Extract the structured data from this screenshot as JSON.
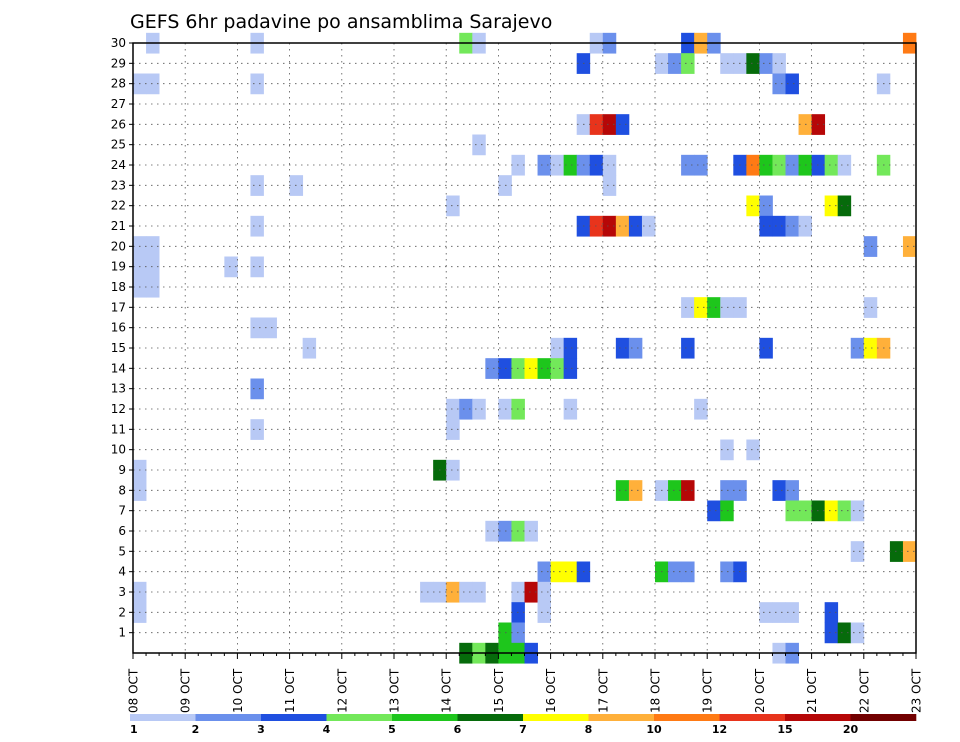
{
  "chart_data": {
    "type": "heatmap",
    "title": "GEFS 6hr padavine po ansamblima Sarajevo",
    "x_tick_labels": [
      "08 OCT",
      "09 OCT",
      "10 OCT",
      "11 OCT",
      "12 OCT",
      "13 OCT",
      "14 OCT",
      "15 OCT",
      "16 OCT",
      "17 OCT",
      "18 OCT",
      "19 OCT",
      "20 OCT",
      "21 OCT",
      "22 OCT",
      "23 OCT"
    ],
    "x_range_days": [
      0,
      15
    ],
    "time_step_hours": 6,
    "y_tick_labels": [
      "1",
      "2",
      "3",
      "4",
      "5",
      "6",
      "7",
      "8",
      "9",
      "10",
      "11",
      "12",
      "13",
      "14",
      "15",
      "16",
      "17",
      "18",
      "19",
      "20",
      "21",
      "22",
      "23",
      "24",
      "25",
      "26",
      "27",
      "28",
      "29",
      "30"
    ],
    "y_range": [
      0,
      30
    ],
    "grid": true,
    "legend_placement": "bottom",
    "legend": {
      "labels": [
        "1",
        "2",
        "3",
        "4",
        "5",
        "6",
        "7",
        "8",
        "10",
        "12",
        "15",
        "20"
      ],
      "colors": [
        "#b8c9f5",
        "#6b90ec",
        "#1f4fe0",
        "#73e85a",
        "#1ec61c",
        "#066b0b",
        "#ffff00",
        "#ffb03a",
        "#ff7a14",
        "#e8341c",
        "#b60707",
        "#720000"
      ]
    },
    "cells": [
      [
        0.25,
        30,
        1
      ],
      [
        2.25,
        30,
        1
      ],
      [
        6.25,
        30,
        4
      ],
      [
        6.5,
        30,
        1
      ],
      [
        8.75,
        30,
        1
      ],
      [
        9,
        30,
        2
      ],
      [
        10.5,
        30,
        3
      ],
      [
        10.75,
        30,
        8
      ],
      [
        11,
        30,
        2
      ],
      [
        14.75,
        30,
        10
      ],
      [
        8.5,
        29,
        3
      ],
      [
        10,
        29,
        1
      ],
      [
        10.25,
        29,
        2
      ],
      [
        10.5,
        29,
        4
      ],
      [
        11.25,
        29,
        1
      ],
      [
        11.5,
        29,
        1
      ],
      [
        11.75,
        29,
        6
      ],
      [
        12,
        29,
        2
      ],
      [
        12.25,
        29,
        1
      ],
      [
        0,
        28,
        1
      ],
      [
        0.25,
        28,
        1
      ],
      [
        2.25,
        28,
        1
      ],
      [
        12.25,
        28,
        2
      ],
      [
        12.5,
        28,
        3
      ],
      [
        14.25,
        28,
        1
      ],
      [
        8.5,
        26,
        1
      ],
      [
        8.75,
        26,
        12
      ],
      [
        9,
        26,
        15
      ],
      [
        9.25,
        26,
        3
      ],
      [
        12.75,
        26,
        9
      ],
      [
        13,
        26,
        15
      ],
      [
        6.5,
        25,
        1
      ],
      [
        7.25,
        24,
        1
      ],
      [
        7.75,
        24,
        2
      ],
      [
        8,
        24,
        1
      ],
      [
        8.25,
        24,
        5
      ],
      [
        8.5,
        24,
        2
      ],
      [
        8.75,
        24,
        3
      ],
      [
        9,
        24,
        1
      ],
      [
        10.5,
        24,
        2
      ],
      [
        10.75,
        24,
        2
      ],
      [
        11.5,
        24,
        3
      ],
      [
        11.75,
        24,
        11
      ],
      [
        12,
        24,
        5
      ],
      [
        12.25,
        24,
        4
      ],
      [
        12.5,
        24,
        2
      ],
      [
        12.75,
        24,
        5
      ],
      [
        13,
        24,
        3
      ],
      [
        13.25,
        24,
        4
      ],
      [
        13.5,
        24,
        1
      ],
      [
        14.25,
        24,
        4
      ],
      [
        2.25,
        23,
        1
      ],
      [
        3,
        23,
        1
      ],
      [
        7,
        23,
        1
      ],
      [
        9,
        23,
        1
      ],
      [
        6,
        22,
        1
      ],
      [
        11.75,
        22,
        7
      ],
      [
        12,
        22,
        2
      ],
      [
        13.25,
        22,
        7
      ],
      [
        13.5,
        22,
        6
      ],
      [
        2.25,
        21,
        1
      ],
      [
        8.5,
        21,
        3
      ],
      [
        8.75,
        21,
        12
      ],
      [
        9,
        21,
        15
      ],
      [
        9.25,
        21,
        9
      ],
      [
        9.5,
        21,
        3
      ],
      [
        9.75,
        21,
        1
      ],
      [
        12,
        21,
        3
      ],
      [
        12.25,
        21,
        3
      ],
      [
        12.5,
        21,
        2
      ],
      [
        12.75,
        21,
        1
      ],
      [
        0,
        20,
        1
      ],
      [
        0.25,
        20,
        1
      ],
      [
        14,
        20,
        2
      ],
      [
        14.75,
        20,
        9
      ],
      [
        0,
        19,
        1
      ],
      [
        0.25,
        19,
        1
      ],
      [
        1.75,
        19,
        1
      ],
      [
        2.25,
        19,
        1
      ],
      [
        0,
        18,
        1
      ],
      [
        0.25,
        18,
        1
      ],
      [
        14,
        17,
        1
      ],
      [
        10.5,
        17,
        1
      ],
      [
        10.75,
        17,
        7
      ],
      [
        11,
        17,
        5
      ],
      [
        11.25,
        17,
        1
      ],
      [
        11.5,
        17,
        1
      ],
      [
        2.25,
        16,
        1
      ],
      [
        2.5,
        16,
        1
      ],
      [
        3.25,
        15,
        1
      ],
      [
        8,
        15,
        1
      ],
      [
        8.25,
        15,
        3
      ],
      [
        9.25,
        15,
        3
      ],
      [
        9.5,
        15,
        2
      ],
      [
        10.5,
        15,
        3
      ],
      [
        12,
        15,
        3
      ],
      [
        13.75,
        15,
        2
      ],
      [
        14,
        15,
        7
      ],
      [
        14.25,
        15,
        8
      ],
      [
        6.75,
        14,
        2
      ],
      [
        7,
        14,
        3
      ],
      [
        7.25,
        14,
        4
      ],
      [
        7.5,
        14,
        7
      ],
      [
        7.75,
        14,
        5
      ],
      [
        8,
        14,
        4
      ],
      [
        8.25,
        14,
        3
      ],
      [
        2.25,
        13,
        2
      ],
      [
        6,
        12,
        1
      ],
      [
        6.25,
        12,
        2
      ],
      [
        6.5,
        12,
        1
      ],
      [
        7,
        12,
        1
      ],
      [
        7.25,
        12,
        4
      ],
      [
        8.25,
        12,
        1
      ],
      [
        10.75,
        12,
        1
      ],
      [
        2.25,
        11,
        1
      ],
      [
        6,
        11,
        1
      ],
      [
        11.25,
        10,
        1
      ],
      [
        11.75,
        10,
        1
      ],
      [
        0,
        9,
        1
      ],
      [
        5.75,
        9,
        6
      ],
      [
        6,
        9,
        1
      ],
      [
        0,
        8,
        1
      ],
      [
        9.25,
        8,
        5
      ],
      [
        9.5,
        8,
        8
      ],
      [
        10,
        8,
        1
      ],
      [
        10.25,
        8,
        5
      ],
      [
        10.5,
        8,
        15
      ],
      [
        11.25,
        8,
        2
      ],
      [
        11.5,
        8,
        2
      ],
      [
        12.25,
        8,
        3
      ],
      [
        12.5,
        8,
        2
      ],
      [
        11,
        7,
        3
      ],
      [
        11.25,
        7,
        5
      ],
      [
        12.5,
        7,
        4
      ],
      [
        12.75,
        7,
        4
      ],
      [
        13,
        7,
        6
      ],
      [
        13.25,
        7,
        7
      ],
      [
        13.5,
        7,
        4
      ],
      [
        13.75,
        7,
        1
      ],
      [
        6.75,
        6,
        1
      ],
      [
        7,
        6,
        2
      ],
      [
        7.25,
        6,
        4
      ],
      [
        7.5,
        6,
        1
      ],
      [
        13.75,
        5,
        1
      ],
      [
        14.5,
        5,
        6
      ],
      [
        14.75,
        5,
        9
      ],
      [
        7.75,
        4,
        2
      ],
      [
        8,
        4,
        7
      ],
      [
        8.25,
        4,
        7
      ],
      [
        8.5,
        4,
        3
      ],
      [
        10,
        4,
        5
      ],
      [
        10.25,
        4,
        2
      ],
      [
        10.5,
        4,
        2
      ],
      [
        11.25,
        4,
        2
      ],
      [
        11.5,
        4,
        3
      ],
      [
        0,
        3,
        1
      ],
      [
        5.5,
        3,
        1
      ],
      [
        5.75,
        3,
        1
      ],
      [
        6,
        3,
        9
      ],
      [
        6.25,
        3,
        1
      ],
      [
        6.5,
        3,
        1
      ],
      [
        7.25,
        3,
        1
      ],
      [
        7.5,
        3,
        15
      ],
      [
        7.75,
        3,
        1
      ],
      [
        0,
        2,
        1
      ],
      [
        7.25,
        2,
        3
      ],
      [
        7.75,
        2,
        1
      ],
      [
        12,
        2,
        1
      ],
      [
        12.25,
        2,
        1
      ],
      [
        12.5,
        2,
        1
      ],
      [
        13.25,
        2,
        3
      ],
      [
        7,
        1,
        5
      ],
      [
        7.25,
        1,
        2
      ],
      [
        13.25,
        1,
        3
      ],
      [
        13.5,
        1,
        6
      ],
      [
        13.75,
        1,
        1
      ],
      [
        6.25,
        0,
        6
      ],
      [
        6.5,
        0,
        4
      ],
      [
        6.75,
        0,
        6
      ],
      [
        7,
        0,
        5
      ],
      [
        7.25,
        0,
        5
      ],
      [
        7.5,
        0,
        3
      ],
      [
        12.25,
        0,
        1
      ],
      [
        12.5,
        0,
        2
      ]
    ]
  }
}
